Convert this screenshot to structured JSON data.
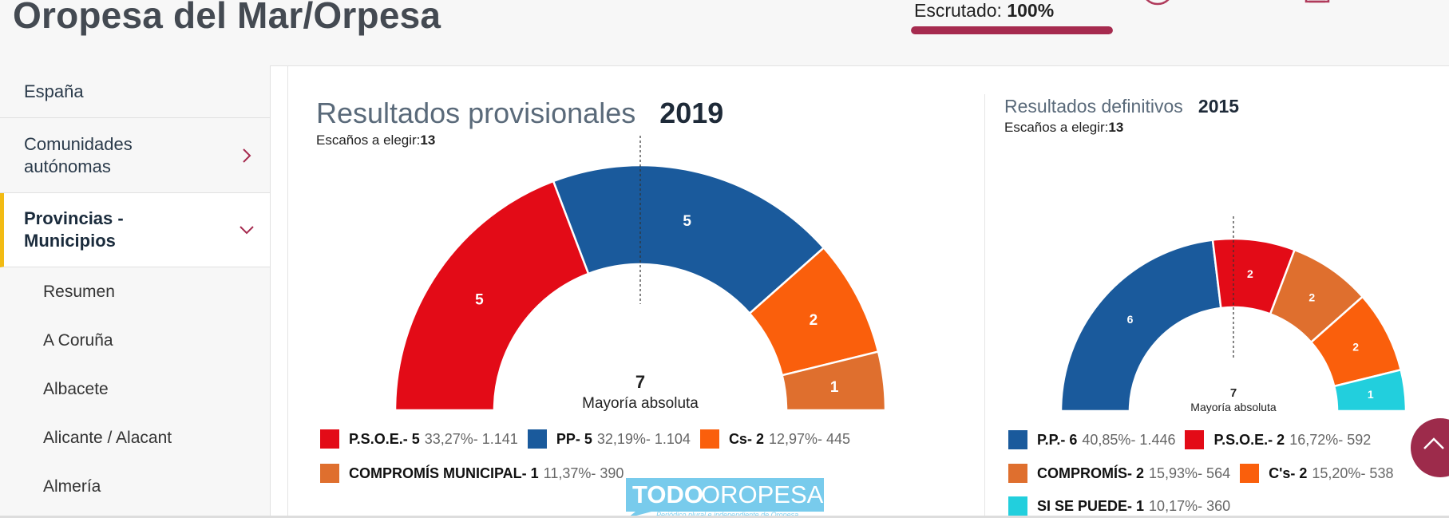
{
  "header": {
    "title": "Oropesa del Mar/Orpesa",
    "scrutiny_label": "Escrutado:",
    "scrutiny_value": "100%",
    "scrutiny_fraction": 1.0,
    "accent": "#a62b4f"
  },
  "sidebar": {
    "items": [
      {
        "label": "España"
      },
      {
        "label": "Comunidades autónomas"
      },
      {
        "label": "Provincias - Municipios"
      }
    ],
    "subitems": [
      "Resumen",
      "A Coruña",
      "Albacete",
      "Alicante / Alacant",
      "Almería"
    ]
  },
  "results2019": {
    "title": "Resultados provisionales",
    "year": "2019",
    "seats_label": "Escaños a elegir:",
    "seats_value": "13",
    "majority_value": "7",
    "majority_label": "Mayoría absoluta",
    "legend": [
      {
        "name": "P.S.O.E.- 5",
        "stats": "33,27%- 1.141",
        "color": "#e30b17"
      },
      {
        "name": "PP- 5",
        "stats": "32,19%- 1.104",
        "color": "#1a5a9c"
      },
      {
        "name": "Cs- 2",
        "stats": "12,97%- 445",
        "color": "#fa5f0c"
      },
      {
        "name": "COMPROMÍS MUNICIPAL- 1",
        "stats": "11,37%- 390",
        "color": "#df6f2e"
      }
    ]
  },
  "results2015": {
    "title": "Resultados definitivos",
    "year": "2015",
    "seats_label": "Escaños a elegir:",
    "seats_value": "13",
    "majority_value": "7",
    "majority_label": "Mayoría absoluta",
    "legend": [
      {
        "name": "P.P.- 6",
        "stats": "40,85%- 1.446",
        "color": "#1a5a9c"
      },
      {
        "name": "P.S.O.E.- 2",
        "stats": "16,72%- 592",
        "color": "#e30b17"
      },
      {
        "name": "COMPROMÍS- 2",
        "stats": "15,93%- 564",
        "color": "#df6f2e"
      },
      {
        "name": "C's- 2",
        "stats": "15,20%- 538",
        "color": "#fa5f0c"
      },
      {
        "name": "SI SE PUEDE- 1",
        "stats": "10,17%- 360",
        "color": "#22cfdd"
      }
    ]
  },
  "chart_data": [
    {
      "type": "pie",
      "variant": "semicircle",
      "categories": [
        "P.S.O.E.",
        "PP",
        "Cs",
        "COMPROMÍS MUNICIPAL"
      ],
      "values": [
        5,
        5,
        2,
        1
      ],
      "colors": [
        "#e30b17",
        "#1a5a9c",
        "#fa5f0c",
        "#df6f2e"
      ],
      "total": 13,
      "majority": 7
    },
    {
      "type": "pie",
      "variant": "semicircle",
      "categories": [
        "P.P.",
        "P.S.O.E.",
        "COMPROMÍS",
        "C's",
        "SI SE PUEDE"
      ],
      "values": [
        6,
        2,
        2,
        2,
        1
      ],
      "colors": [
        "#1a5a9c",
        "#e30b17",
        "#df6f2e",
        "#fa5f0c",
        "#22cfdd"
      ],
      "total": 13,
      "majority": 7
    }
  ],
  "watermark": {
    "brand_a": "TODO",
    "brand_b": "OROPESA",
    "tagline": "Periódico plural e independiente de Oropesa"
  }
}
